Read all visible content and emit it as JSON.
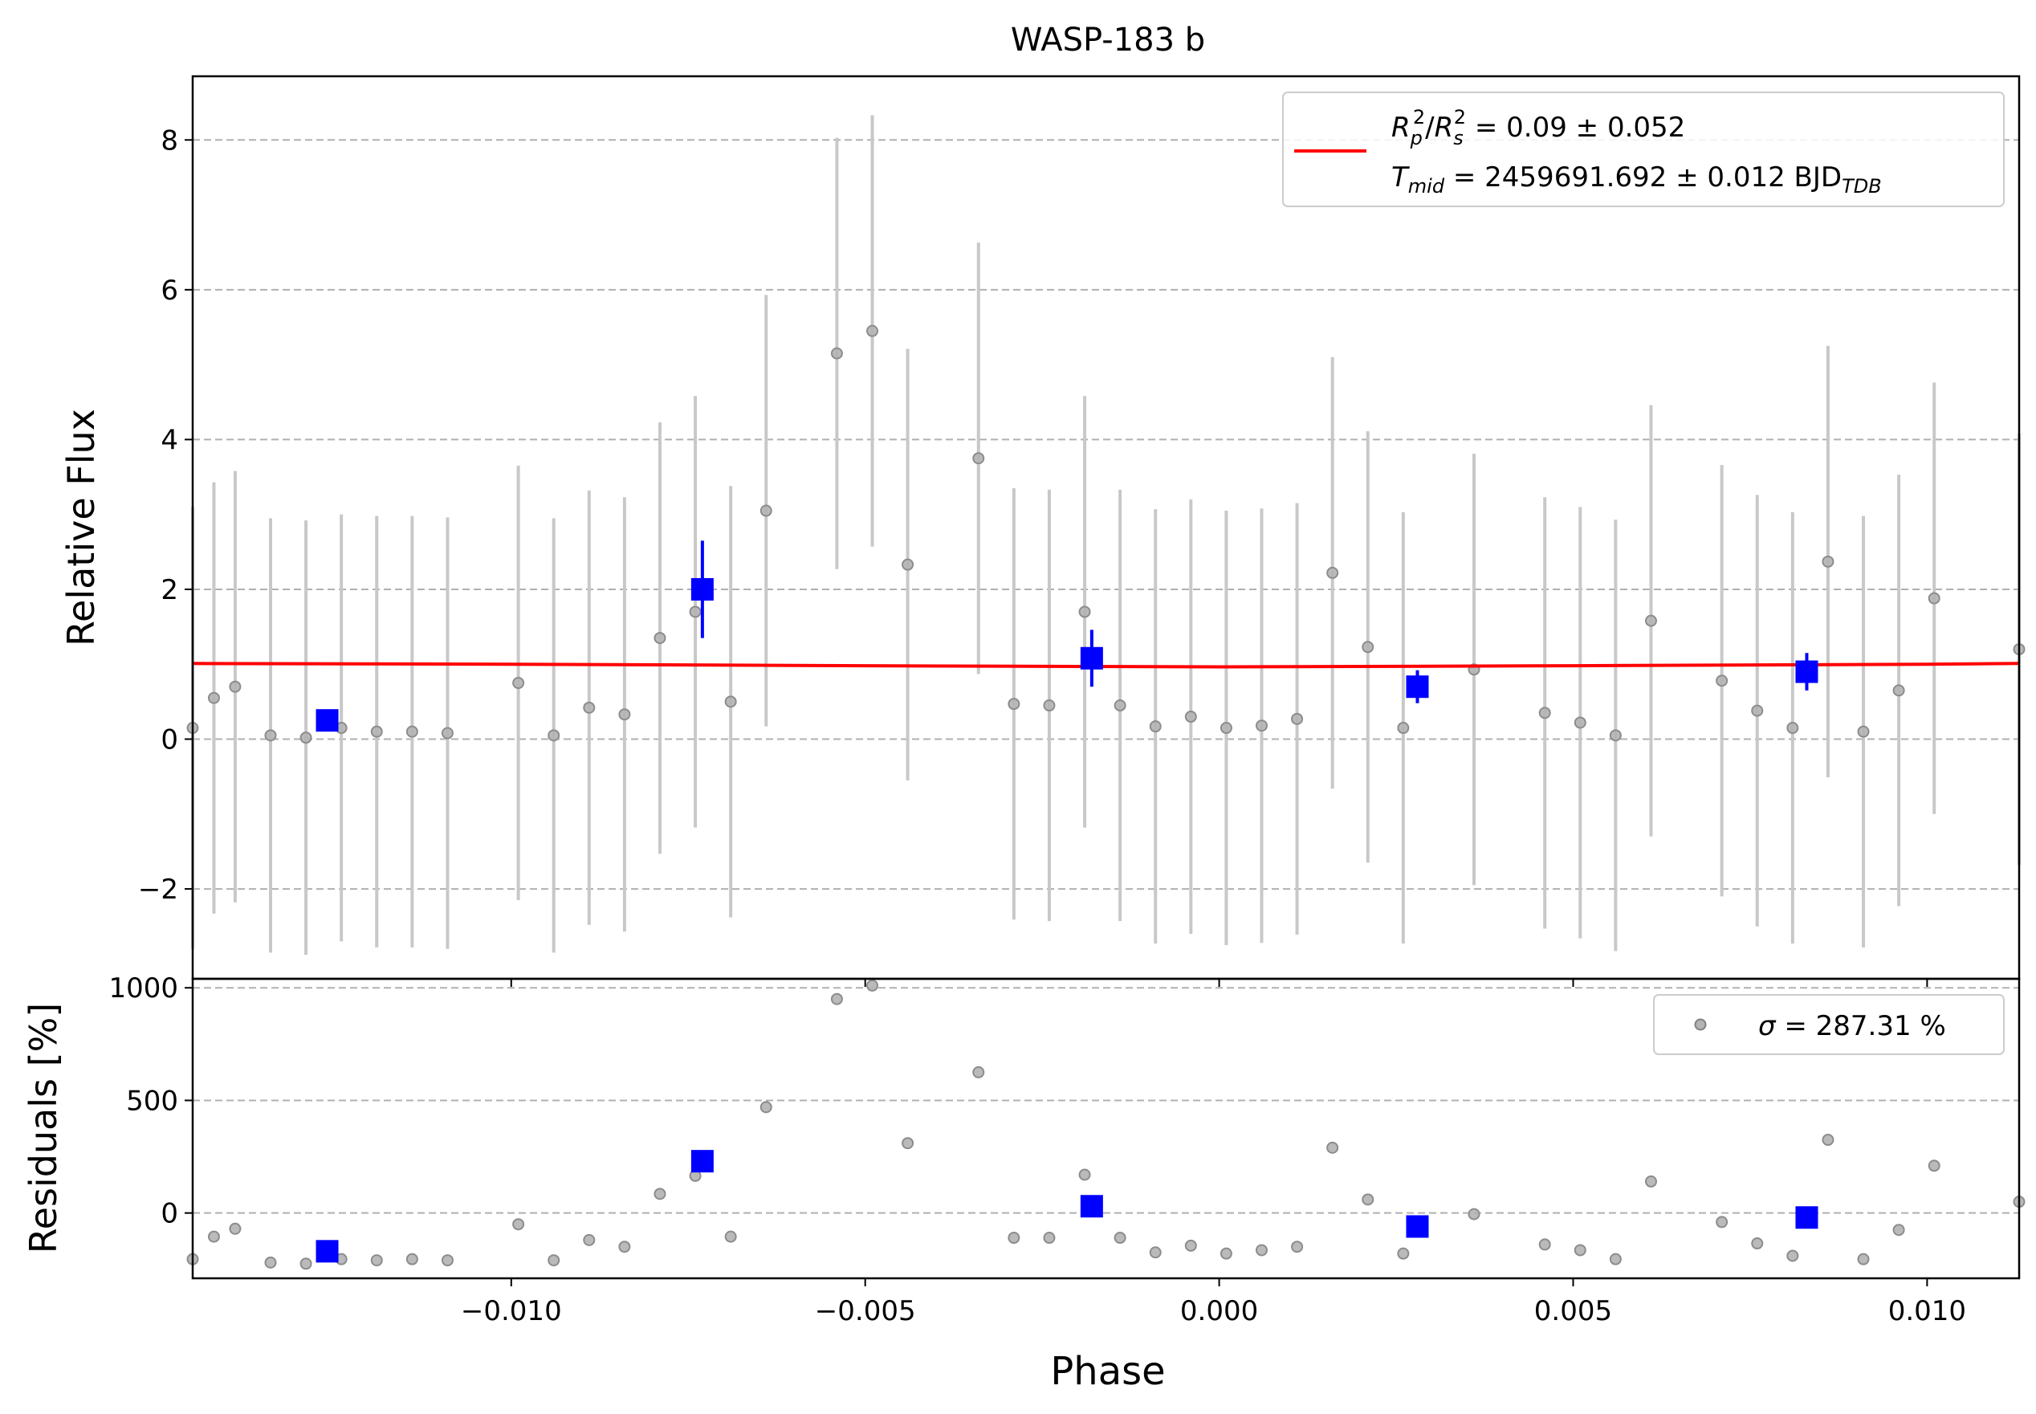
{
  "chart_data": [
    {
      "type": "scatter",
      "panel": "flux",
      "title": "WASP-183 b",
      "xlabel": "",
      "ylabel": "Relative Flux",
      "xlim": [
        -0.0145,
        0.0113
      ],
      "ylim": [
        -3.2,
        8.85
      ],
      "xticks": [
        -0.01,
        -0.005,
        0.0,
        0.005,
        0.01
      ],
      "yticks": [
        -2,
        0,
        2,
        4,
        6,
        8
      ],
      "ytick_labels": [
        "−2",
        "0",
        "2",
        "4",
        "6",
        "8"
      ],
      "grid": "horizontal dashed",
      "legend": {
        "placement": "upper-right",
        "line1_main": "R",
        "line1_text": "R_p^2/R_s^2 = 0.09 ± 0.052",
        "line2_text": "T_mid = 2459691.692 ± 0.012 BJD_TDB"
      },
      "legend_rich": {
        "rp_sub": "p",
        "rs_sub": "s",
        "sq": "2",
        "rp_value": " = 0.09 ± 0.052",
        "t": "T",
        "t_sub": "mid",
        "t_value": " = 2459691.692 ± 0.012 BJD",
        "t_suffix_sub": "TDB"
      },
      "series": [
        {
          "name": "data",
          "color": "#808080",
          "points": [
            {
              "x": -0.0145,
              "y": 0.15,
              "err": 2.95
            },
            {
              "x": -0.0142,
              "y": 0.55,
              "err": 2.88
            },
            {
              "x": -0.0139,
              "y": 0.7,
              "err": 2.88
            },
            {
              "x": -0.0134,
              "y": 0.05,
              "err": 2.9
            },
            {
              "x": -0.0129,
              "y": 0.02,
              "err": 2.9
            },
            {
              "x": -0.0124,
              "y": 0.15,
              "err": 2.85
            },
            {
              "x": -0.0119,
              "y": 0.1,
              "err": 2.88
            },
            {
              "x": -0.0114,
              "y": 0.1,
              "err": 2.88
            },
            {
              "x": -0.0109,
              "y": 0.08,
              "err": 2.88
            },
            {
              "x": -0.0099,
              "y": 0.75,
              "err": 2.9
            },
            {
              "x": -0.0094,
              "y": 0.05,
              "err": 2.9
            },
            {
              "x": -0.0089,
              "y": 0.42,
              "err": 2.9
            },
            {
              "x": -0.0084,
              "y": 0.33,
              "err": 2.9
            },
            {
              "x": -0.0079,
              "y": 1.35,
              "err": 2.88
            },
            {
              "x": -0.0074,
              "y": 1.7,
              "err": 2.88
            },
            {
              "x": -0.0069,
              "y": 0.5,
              "err": 2.88
            },
            {
              "x": -0.0064,
              "y": 3.05,
              "err": 2.88
            },
            {
              "x": -0.0054,
              "y": 5.15,
              "err": 2.88
            },
            {
              "x": -0.0049,
              "y": 5.45,
              "err": 2.88
            },
            {
              "x": -0.0044,
              "y": 2.33,
              "err": 2.88
            },
            {
              "x": -0.0034,
              "y": 3.75,
              "err": 2.88
            },
            {
              "x": -0.0029,
              "y": 0.47,
              "err": 2.88
            },
            {
              "x": -0.0024,
              "y": 0.45,
              "err": 2.88
            },
            {
              "x": -0.0019,
              "y": 1.7,
              "err": 2.88
            },
            {
              "x": -0.0014,
              "y": 0.45,
              "err": 2.88
            },
            {
              "x": -0.0009,
              "y": 0.17,
              "err": 2.9
            },
            {
              "x": -0.0004,
              "y": 0.3,
              "err": 2.9
            },
            {
              "x": 0.0001,
              "y": 0.15,
              "err": 2.9
            },
            {
              "x": 0.0006,
              "y": 0.18,
              "err": 2.9
            },
            {
              "x": 0.0011,
              "y": 0.27,
              "err": 2.88
            },
            {
              "x": 0.0016,
              "y": 2.22,
              "err": 2.88
            },
            {
              "x": 0.0021,
              "y": 1.23,
              "err": 2.88
            },
            {
              "x": 0.0026,
              "y": 0.15,
              "err": 2.88
            },
            {
              "x": 0.0036,
              "y": 0.93,
              "err": 2.88
            },
            {
              "x": 0.0046,
              "y": 0.35,
              "err": 2.88
            },
            {
              "x": 0.0051,
              "y": 0.22,
              "err": 2.88
            },
            {
              "x": 0.0056,
              "y": 0.05,
              "err": 2.88
            },
            {
              "x": 0.0061,
              "y": 1.58,
              "err": 2.88
            },
            {
              "x": 0.0071,
              "y": 0.78,
              "err": 2.88
            },
            {
              "x": 0.0076,
              "y": 0.38,
              "err": 2.88
            },
            {
              "x": 0.0081,
              "y": 0.15,
              "err": 2.88
            },
            {
              "x": 0.0086,
              "y": 2.37,
              "err": 2.88
            },
            {
              "x": 0.0091,
              "y": 0.1,
              "err": 2.88
            },
            {
              "x": 0.0096,
              "y": 0.65,
              "err": 2.88
            },
            {
              "x": 0.0101,
              "y": 1.88,
              "err": 2.88
            },
            {
              "x": 0.0113,
              "y": 1.2,
              "err": 2.88
            }
          ]
        },
        {
          "name": "binned",
          "color": "#0000ff",
          "points": [
            {
              "x": -0.0126,
              "y": 0.25,
              "err": 0.1
            },
            {
              "x": -0.0073,
              "y": 2.0,
              "err": 0.65
            },
            {
              "x": -0.0018,
              "y": 1.08,
              "err": 0.38
            },
            {
              "x": 0.0028,
              "y": 0.7,
              "err": 0.22
            },
            {
              "x": 0.0083,
              "y": 0.9,
              "err": 0.25
            }
          ]
        },
        {
          "name": "R_p^2/R_s^2 = 0.09 ± 0.052",
          "type": "line",
          "color": "#ff0000",
          "x": [
            -0.0145,
            -0.01,
            -0.005,
            -0.002,
            0.0,
            0.002,
            0.005,
            0.01,
            0.0113
          ],
          "y": [
            1.01,
            1.0,
            0.98,
            0.97,
            0.965,
            0.97,
            0.98,
            1.0,
            1.01
          ]
        }
      ]
    },
    {
      "type": "scatter",
      "panel": "residuals",
      "title": "",
      "xlabel": "Phase",
      "ylabel": "Residuals [%]",
      "xlim": [
        -0.0145,
        0.0113
      ],
      "ylim": [
        -290,
        1040
      ],
      "xticks": [
        -0.01,
        -0.005,
        0.0,
        0.005,
        0.01
      ],
      "xtick_labels": [
        "−0.010",
        "−0.005",
        "0.000",
        "0.005",
        "0.010"
      ],
      "yticks": [
        0,
        500,
        1000
      ],
      "ytick_labels": [
        "0",
        "500",
        "1000"
      ],
      "grid": "horizontal dashed",
      "legend": {
        "placement": "upper-right",
        "sigma": "σ",
        "text": " = 287.31 %"
      },
      "series": [
        {
          "name": "σ = 287.31 %",
          "color": "#808080",
          "points": [
            {
              "x": -0.0145,
              "y": -205
            },
            {
              "x": -0.0142,
              "y": -105
            },
            {
              "x": -0.0139,
              "y": -70
            },
            {
              "x": -0.0134,
              "y": -220
            },
            {
              "x": -0.0129,
              "y": -225
            },
            {
              "x": -0.0124,
              "y": -205
            },
            {
              "x": -0.0119,
              "y": -210
            },
            {
              "x": -0.0114,
              "y": -205
            },
            {
              "x": -0.0109,
              "y": -210
            },
            {
              "x": -0.0099,
              "y": -50
            },
            {
              "x": -0.0094,
              "y": -210
            },
            {
              "x": -0.0089,
              "y": -120
            },
            {
              "x": -0.0084,
              "y": -150
            },
            {
              "x": -0.0079,
              "y": 85
            },
            {
              "x": -0.0074,
              "y": 165
            },
            {
              "x": -0.0069,
              "y": -105
            },
            {
              "x": -0.0064,
              "y": 470
            },
            {
              "x": -0.0054,
              "y": 950
            },
            {
              "x": -0.0049,
              "y": 1010
            },
            {
              "x": -0.0044,
              "y": 310
            },
            {
              "x": -0.0034,
              "y": 625
            },
            {
              "x": -0.0029,
              "y": -110
            },
            {
              "x": -0.0024,
              "y": -110
            },
            {
              "x": -0.0019,
              "y": 170
            },
            {
              "x": -0.0014,
              "y": -110
            },
            {
              "x": -0.0009,
              "y": -175
            },
            {
              "x": -0.0004,
              "y": -145
            },
            {
              "x": 0.0001,
              "y": -180
            },
            {
              "x": 0.0006,
              "y": -165
            },
            {
              "x": 0.0011,
              "y": -150
            },
            {
              "x": 0.0016,
              "y": 290
            },
            {
              "x": 0.0021,
              "y": 60
            },
            {
              "x": 0.0026,
              "y": -180
            },
            {
              "x": 0.0036,
              "y": -5
            },
            {
              "x": 0.0046,
              "y": -140
            },
            {
              "x": 0.0051,
              "y": -165
            },
            {
              "x": 0.0056,
              "y": -205
            },
            {
              "x": 0.0061,
              "y": 140
            },
            {
              "x": 0.0071,
              "y": -40
            },
            {
              "x": 0.0076,
              "y": -135
            },
            {
              "x": 0.0081,
              "y": -190
            },
            {
              "x": 0.0086,
              "y": 325
            },
            {
              "x": 0.0091,
              "y": -205
            },
            {
              "x": 0.0096,
              "y": -75
            },
            {
              "x": 0.0101,
              "y": 210
            },
            {
              "x": 0.0113,
              "y": 50
            }
          ]
        },
        {
          "name": "binned",
          "color": "#0000ff",
          "points": [
            {
              "x": -0.0126,
              "y": -170
            },
            {
              "x": -0.0073,
              "y": 230
            },
            {
              "x": -0.0018,
              "y": 30
            },
            {
              "x": 0.0028,
              "y": -60
            },
            {
              "x": 0.0083,
              "y": -20
            }
          ]
        }
      ]
    }
  ]
}
